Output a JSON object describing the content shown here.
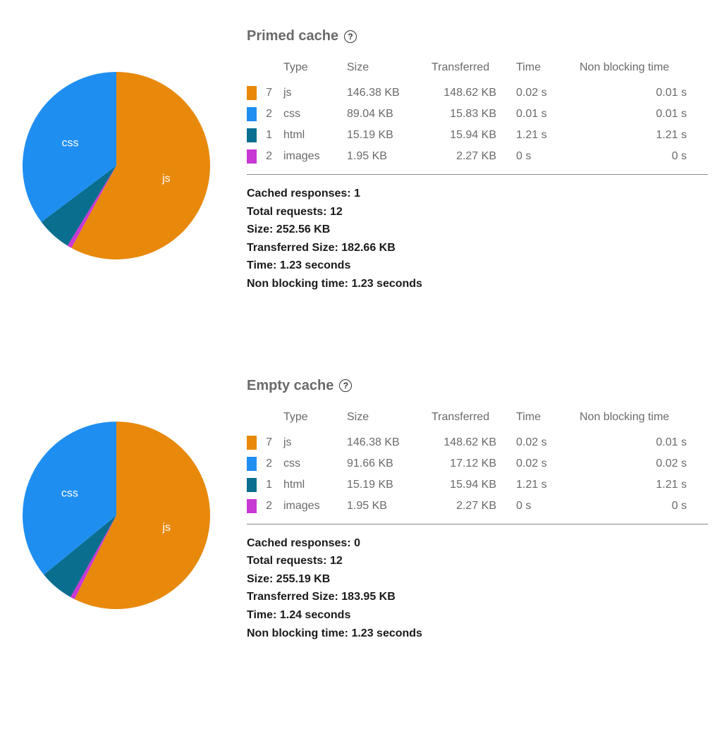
{
  "colors": {
    "js": "#e8890c",
    "css": "#1f8ef1",
    "html": "#0a6e8f",
    "images": "#c838d4",
    "text_muted": "#6a6a6a",
    "text_strong": "#1a1a1a",
    "divider": "#888888",
    "background": "#ffffff",
    "pie_label": "#ffffff"
  },
  "typography": {
    "title_fontsize": 20,
    "body_fontsize": 16,
    "font_family": "system-ui"
  },
  "chart": {
    "type": "pie",
    "radius": 135,
    "label_color": "#ffffff",
    "label_fontsize": 16
  },
  "headers": {
    "type": "Type",
    "size": "Size",
    "transferred": "Transferred",
    "time": "Time",
    "non_blocking_time": "Non blocking time"
  },
  "summary_labels": {
    "cached_responses": "Cached responses:",
    "total_requests": "Total requests:",
    "size": "Size:",
    "transferred_size": "Transferred Size:",
    "time": "Time:",
    "non_blocking_time": "Non blocking time:"
  },
  "sections": [
    {
      "title": "Primed cache",
      "pie": {
        "slices": [
          {
            "key": "js",
            "label": "js",
            "value": 146.38,
            "color": "#e8890c",
            "show_label": true
          },
          {
            "key": "images",
            "label": "images",
            "value": 1.95,
            "color": "#c838d4",
            "show_label": false
          },
          {
            "key": "html",
            "label": "html",
            "value": 15.19,
            "color": "#0a6e8f",
            "show_label": false
          },
          {
            "key": "css",
            "label": "css",
            "value": 89.04,
            "color": "#1f8ef1",
            "show_label": true
          }
        ]
      },
      "rows": [
        {
          "count": "7",
          "type": "js",
          "size": "146.38 KB",
          "transferred": "148.62 KB",
          "time": "0.02 s",
          "nbt": "0.01 s",
          "color": "#e8890c"
        },
        {
          "count": "2",
          "type": "css",
          "size": "89.04 KB",
          "transferred": "15.83 KB",
          "time": "0.01 s",
          "nbt": "0.01 s",
          "color": "#1f8ef1"
        },
        {
          "count": "1",
          "type": "html",
          "size": "15.19 KB",
          "transferred": "15.94 KB",
          "time": "1.21 s",
          "nbt": "1.21 s",
          "color": "#0a6e8f"
        },
        {
          "count": "2",
          "type": "images",
          "size": "1.95 KB",
          "transferred": "2.27 KB",
          "time": "0 s",
          "nbt": "0 s",
          "color": "#c838d4"
        }
      ],
      "summary": {
        "cached_responses": "1",
        "total_requests": "12",
        "size": "252.56 KB",
        "transferred_size": "182.66 KB",
        "time": "1.23 seconds",
        "non_blocking_time": "1.23 seconds"
      }
    },
    {
      "title": "Empty cache",
      "pie": {
        "slices": [
          {
            "key": "js",
            "label": "js",
            "value": 146.38,
            "color": "#e8890c",
            "show_label": true
          },
          {
            "key": "images",
            "label": "images",
            "value": 1.95,
            "color": "#c838d4",
            "show_label": false
          },
          {
            "key": "html",
            "label": "html",
            "value": 15.19,
            "color": "#0a6e8f",
            "show_label": false
          },
          {
            "key": "css",
            "label": "css",
            "value": 91.66,
            "color": "#1f8ef1",
            "show_label": true
          }
        ]
      },
      "rows": [
        {
          "count": "7",
          "type": "js",
          "size": "146.38 KB",
          "transferred": "148.62 KB",
          "time": "0.02 s",
          "nbt": "0.01 s",
          "color": "#e8890c"
        },
        {
          "count": "2",
          "type": "css",
          "size": "91.66 KB",
          "transferred": "17.12 KB",
          "time": "0.02 s",
          "nbt": "0.02 s",
          "color": "#1f8ef1"
        },
        {
          "count": "1",
          "type": "html",
          "size": "15.19 KB",
          "transferred": "15.94 KB",
          "time": "1.21 s",
          "nbt": "1.21 s",
          "color": "#0a6e8f"
        },
        {
          "count": "2",
          "type": "images",
          "size": "1.95 KB",
          "transferred": "2.27 KB",
          "time": "0 s",
          "nbt": "0 s",
          "color": "#c838d4"
        }
      ],
      "summary": {
        "cached_responses": "0",
        "total_requests": "12",
        "size": "255.19 KB",
        "transferred_size": "183.95 KB",
        "time": "1.24 seconds",
        "non_blocking_time": "1.23 seconds"
      }
    }
  ]
}
